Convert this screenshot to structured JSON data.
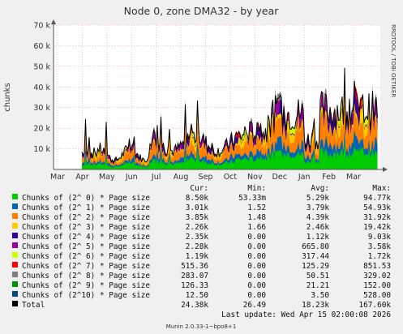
{
  "chart_data": {
    "type": "area",
    "title": "Node 0, zone DMA32 - by year",
    "ylabel": "chunks",
    "side_label": "RRDTOOL / TOBI OETIKER",
    "ylim": [
      0,
      70000
    ],
    "yticks": [
      {
        "value": 10000,
        "label": "10 k"
      },
      {
        "value": 20000,
        "label": "20 k"
      },
      {
        "value": 30000,
        "label": "30 k"
      },
      {
        "value": 40000,
        "label": "40 k"
      },
      {
        "value": 50000,
        "label": "50 k"
      },
      {
        "value": 60000,
        "label": "60 k"
      },
      {
        "value": 70000,
        "label": "70 k"
      }
    ],
    "xticks": [
      "Mar",
      "Apr",
      "May",
      "Jun",
      "Jul",
      "Aug",
      "Sep",
      "Oct",
      "Nov",
      "Dec",
      "Jan",
      "Feb",
      "Mar"
    ],
    "grid": true,
    "columns": [
      "Cur:",
      "Min:",
      "Avg:",
      "Max:"
    ],
    "series": [
      {
        "name": "Chunks of (2^ 0) * Page size",
        "color": "#00cc00",
        "cur": "8.50k",
        "min": "53.33m",
        "avg": "5.29k",
        "max": "94.77k"
      },
      {
        "name": "Chunks of (2^ 1) * Page size",
        "color": "#0066b3",
        "cur": "3.01k",
        "min": "1.52",
        "avg": "3.79k",
        "max": "54.93k"
      },
      {
        "name": "Chunks of (2^ 2) * Page size",
        "color": "#ff8000",
        "cur": "3.85k",
        "min": "1.48",
        "avg": "4.39k",
        "max": "31.92k"
      },
      {
        "name": "Chunks of (2^ 3) * Page size",
        "color": "#ffcc00",
        "cur": "2.26k",
        "min": "1.66",
        "avg": "2.46k",
        "max": "19.42k"
      },
      {
        "name": "Chunks of (2^ 4) * Page size",
        "color": "#330099",
        "cur": "2.35k",
        "min": "0.00",
        "avg": "1.12k",
        "max": "9.03k"
      },
      {
        "name": "Chunks of (2^ 5) * Page size",
        "color": "#990099",
        "cur": "2.28k",
        "min": "0.00",
        "avg": "665.80",
        "max": "3.58k"
      },
      {
        "name": "Chunks of (2^ 6) * Page size",
        "color": "#ccff00",
        "cur": "1.19k",
        "min": "0.00",
        "avg": "317.44",
        "max": "1.72k"
      },
      {
        "name": "Chunks of (2^ 7) * Page size",
        "color": "#ff0000",
        "cur": "515.36",
        "min": "0.00",
        "avg": "125.29",
        "max": "851.53"
      },
      {
        "name": "Chunks of (2^ 8) * Page size",
        "color": "#808080",
        "cur": "283.07",
        "min": "0.00",
        "avg": "50.51",
        "max": "329.02"
      },
      {
        "name": "Chunks of (2^ 9) * Page size",
        "color": "#008f00",
        "cur": "126.33",
        "min": "0.00",
        "avg": "21.21",
        "max": "152.00"
      },
      {
        "name": "Chunks of (2^10) * Page size",
        "color": "#00487d",
        "cur": "12.50",
        "min": "0.00",
        "avg": "3.50",
        "max": "528.00"
      },
      {
        "name": "Total",
        "color": "#000000",
        "cur": "24.38k",
        "min": "26.49",
        "avg": "18.23k",
        "max": "167.60k"
      }
    ],
    "last_update": "Last update: Wed Apr 15 02:00:08 2026",
    "footer": "Munin 2.0.33-1~bpo8+1"
  }
}
